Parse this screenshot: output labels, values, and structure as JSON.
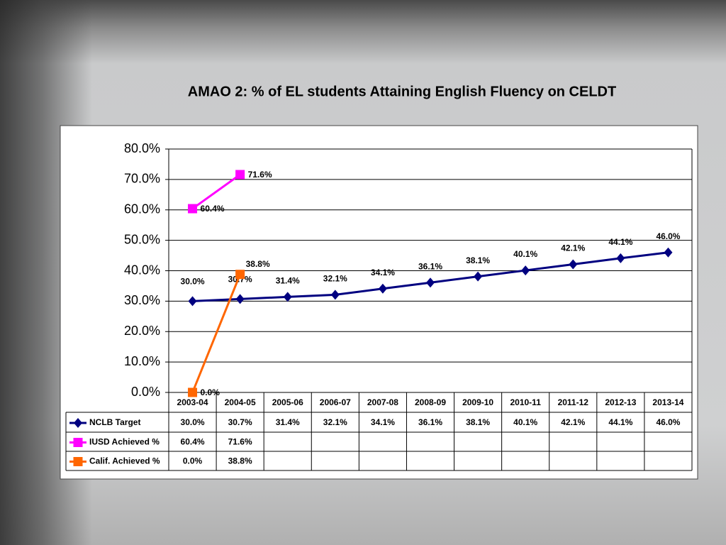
{
  "chart_data": {
    "type": "line",
    "title": "AMAO 2: % of EL students Attaining English Fluency on CELDT",
    "categories": [
      "2003-04",
      "2004-05",
      "2005-06",
      "2006-07",
      "2007-08",
      "2008-09",
      "2009-10",
      "2010-11",
      "2011-12",
      "2012-13",
      "2013-14"
    ],
    "series": [
      {
        "name": "NCLB Target",
        "color": "#000080",
        "marker": "diamond",
        "values": [
          30.0,
          30.7,
          31.4,
          32.1,
          34.1,
          36.1,
          38.1,
          40.1,
          42.1,
          44.1,
          46.0
        ],
        "value_labels": [
          "30.0%",
          "30.7%",
          "31.4%",
          "32.1%",
          "34.1%",
          "36.1%",
          "38.1%",
          "40.1%",
          "42.1%",
          "44.1%",
          "46.0%"
        ]
      },
      {
        "name": "IUSD Achieved %",
        "color": "#ff00ff",
        "marker": "square",
        "values": [
          60.4,
          71.6,
          null,
          null,
          null,
          null,
          null,
          null,
          null,
          null,
          null
        ],
        "value_labels": [
          "60.4%",
          "71.6%",
          null,
          null,
          null,
          null,
          null,
          null,
          null,
          null,
          null
        ]
      },
      {
        "name": "Calif. Achieved %",
        "color": "#ff6600",
        "marker": "square",
        "values": [
          0.0,
          38.8,
          null,
          null,
          null,
          null,
          null,
          null,
          null,
          null,
          null
        ],
        "value_labels": [
          "0.0%",
          "38.8%",
          null,
          null,
          null,
          null,
          null,
          null,
          null,
          null,
          null
        ]
      }
    ],
    "ylim": [
      0,
      80
    ],
    "yticks": [
      {
        "value": 0,
        "label": "0.0%"
      },
      {
        "value": 10,
        "label": "10.0%"
      },
      {
        "value": 20,
        "label": "20.0%"
      },
      {
        "value": 30,
        "label": "30.0%"
      },
      {
        "value": 40,
        "label": "40.0%"
      },
      {
        "value": 50,
        "label": "50.0%"
      },
      {
        "value": 60,
        "label": "60.0%"
      },
      {
        "value": 70,
        "label": "70.0%"
      },
      {
        "value": 80,
        "label": "80.0%"
      }
    ],
    "grid": true
  }
}
